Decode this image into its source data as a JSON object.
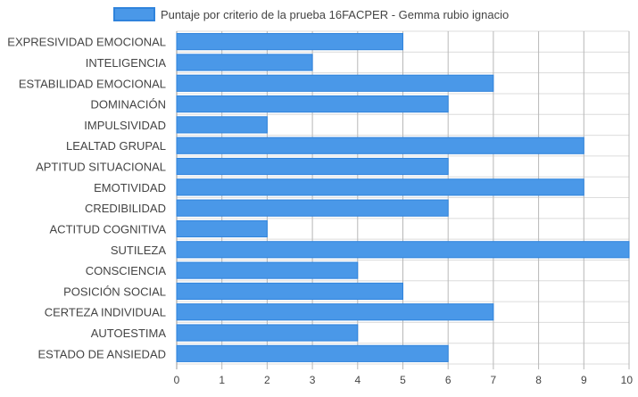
{
  "chart_data": {
    "type": "bar",
    "orientation": "horizontal",
    "legend": {
      "position": "top",
      "label": "Puntaje por criterio de la prueba 16FACPER - Gemma rubio ignacio"
    },
    "categories": [
      "EXPRESIVIDAD EMOCIONAL",
      "INTELIGENCIA",
      "ESTABILIDAD EMOCIONAL",
      "DOMINACIÓN",
      "IMPULSIVIDAD",
      "LEALTAD GRUPAL",
      "APTITUD SITUACIONAL",
      "EMOTIVIDAD",
      "CREDIBILIDAD",
      "ACTITUD COGNITIVA",
      "SUTILEZA",
      "CONSCIENCIA",
      "POSICIÓN SOCIAL",
      "CERTEZA INDIVIDUAL",
      "AUTOESTIMA",
      "ESTADO DE ANSIEDAD"
    ],
    "series": [
      {
        "name": "Puntaje por criterio de la prueba 16FACPER - Gemma rubio ignacio",
        "values": [
          5,
          3,
          7,
          6,
          2,
          9,
          6,
          9,
          6,
          2,
          10,
          4,
          5,
          7,
          4,
          6
        ]
      }
    ],
    "xlim": [
      0,
      10
    ],
    "xticks": [
      "0",
      "1",
      "2",
      "3",
      "4",
      "5",
      "6",
      "7",
      "8",
      "9",
      "10"
    ],
    "grid": true,
    "colors": {
      "bar_fill": "#4a98e8",
      "bar_stroke": "#2f83dc",
      "grid": "#dcdcdc",
      "grid_major": "#b8b8b8",
      "text": "#444444"
    }
  }
}
